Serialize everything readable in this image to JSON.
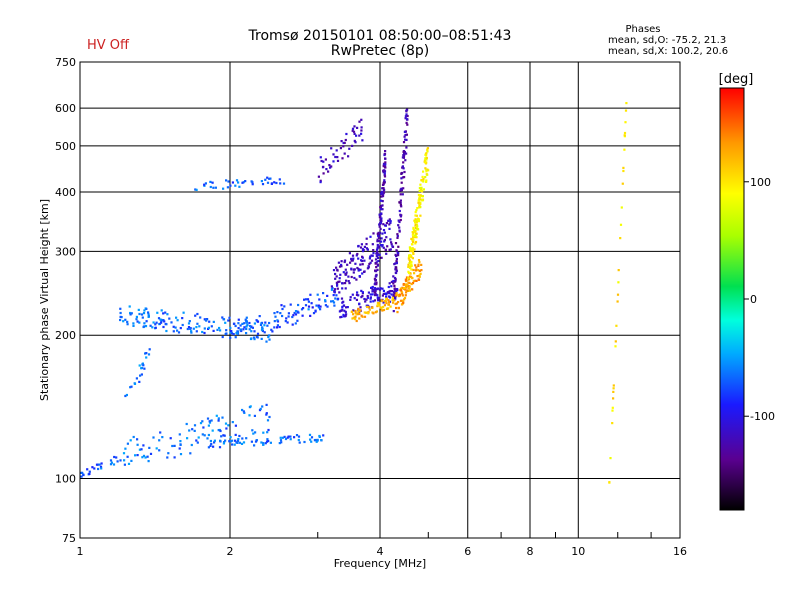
{
  "header": {
    "status": "HV Off",
    "title_line1": "Tromsø 20150101 08:50:00–08:51:43",
    "title_line2": "RwPretec (8p)",
    "phases_title": "Phases",
    "phases_o": "mean, sd,O: -75.2, 21.3",
    "phases_x": "mean, sd,X: 100.2, 20.6"
  },
  "colorbar": {
    "label": "[deg]",
    "min": -180,
    "max": 180,
    "ticks": [
      -100,
      0,
      100
    ]
  },
  "chart_data": {
    "type": "scatter",
    "xlabel": "Frequency [MHz]",
    "ylabel": "Stationary phase Virtual Height [km]",
    "xscale": "log",
    "yscale": "log",
    "xlim": [
      1,
      16
    ],
    "ylim": [
      75,
      750
    ],
    "xticks": [
      1,
      2,
      4,
      6,
      8,
      10,
      16
    ],
    "yticks": [
      75,
      100,
      200,
      300,
      400,
      500,
      600,
      750
    ],
    "grid": true,
    "color_encoding": "phase [deg]",
    "traces": [
      {
        "x0": 1.0,
        "x1": 1.2,
        "y0": 102,
        "y1": 110,
        "phase": -70,
        "n": 25,
        "jy": 0.02
      },
      {
        "x0": 1.2,
        "x1": 2.4,
        "y0": 112,
        "y1": 135,
        "phase": -65,
        "n": 110,
        "jy": 0.08
      },
      {
        "x0": 1.8,
        "x1": 3.1,
        "y0": 118,
        "y1": 122,
        "phase": -68,
        "n": 70,
        "jy": 0.02
      },
      {
        "x0": 1.22,
        "x1": 1.38,
        "y0": 140,
        "y1": 185,
        "phase": -64,
        "n": 22,
        "jy": 0.04
      },
      {
        "x0": 1.2,
        "x1": 2.4,
        "y0": 220,
        "y1": 203,
        "phase": -67,
        "n": 170,
        "jy": 0.05
      },
      {
        "x0": 2.4,
        "x1": 3.3,
        "y0": 205,
        "y1": 240,
        "phase": -80,
        "n": 40,
        "jy": 0.03
      },
      {
        "x0": 2.0,
        "x1": 3.3,
        "y0": 205,
        "y1": 245,
        "phase": -70,
        "n": 60,
        "jy": 0.04
      },
      {
        "x0": 3.3,
        "x1": 4.35,
        "y0": 228,
        "y1": 250,
        "phase": -108,
        "n": 120,
        "jy": 0.05
      },
      {
        "x0": 3.2,
        "x1": 4.25,
        "y0": 255,
        "y1": 330,
        "phase": -115,
        "n": 150,
        "jy": 0.08
      },
      {
        "x0": 3.9,
        "x1": 4.1,
        "y0": 250,
        "y1": 470,
        "phase": -120,
        "n": 130,
        "jy": 0.08
      },
      {
        "x0": 4.25,
        "x1": 4.55,
        "y0": 240,
        "y1": 600,
        "phase": -125,
        "n": 110,
        "jy": 0.1
      },
      {
        "x0": 3.5,
        "x1": 4.3,
        "y0": 218,
        "y1": 238,
        "phase": 120,
        "n": 70,
        "jy": 0.03
      },
      {
        "x0": 4.3,
        "x1": 4.85,
        "y0": 232,
        "y1": 280,
        "phase": 130,
        "n": 90,
        "jy": 0.05
      },
      {
        "x0": 4.55,
        "x1": 5.0,
        "y0": 270,
        "y1": 480,
        "phase": 95,
        "n": 150,
        "jy": 0.08
      },
      {
        "x0": 1.7,
        "x1": 2.6,
        "y0": 410,
        "y1": 425,
        "phase": -68,
        "n": 40,
        "jy": 0.02
      },
      {
        "x0": 3.0,
        "x1": 3.7,
        "y0": 440,
        "y1": 540,
        "phase": -118,
        "n": 50,
        "jy": 0.06
      },
      {
        "x0": 11.5,
        "x1": 12.5,
        "y0": 90,
        "y1": 640,
        "phase": 100,
        "n": 30,
        "jy": 0.02
      }
    ]
  }
}
